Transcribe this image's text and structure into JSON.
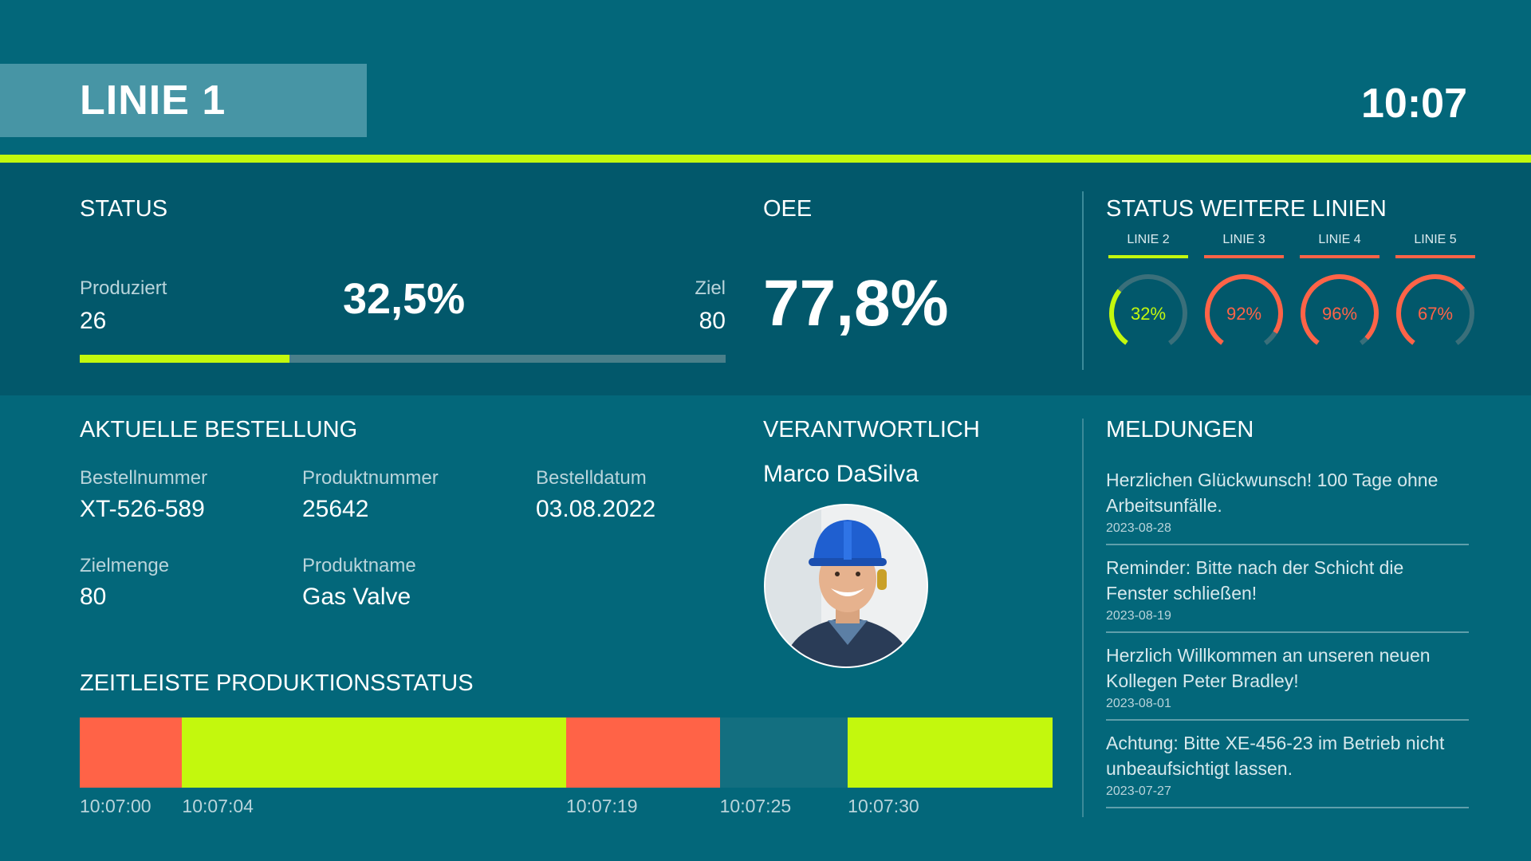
{
  "header": {
    "title": "LINIE 1",
    "clock": "10:07"
  },
  "colors": {
    "accent": "#c3f80d",
    "alert": "#ff6347",
    "idle": "#136f80",
    "bg": "#03677a",
    "band": "#02586b"
  },
  "status": {
    "title": "STATUS",
    "produced_label": "Produziert",
    "produced_value": "26",
    "percent": "32,5%",
    "target_label": "Ziel",
    "target_value": "80",
    "progress_fraction": 0.325
  },
  "oee": {
    "title": "OEE",
    "value": "77,8%"
  },
  "other_lines": {
    "title": "STATUS WEITERE LINIEN",
    "lines": [
      {
        "name": "LINIE 2",
        "value_text": "32%",
        "fraction": 0.32,
        "color": "#c3f80d"
      },
      {
        "name": "LINIE 3",
        "value_text": "92%",
        "fraction": 0.92,
        "color": "#ff6347"
      },
      {
        "name": "LINIE 4",
        "value_text": "96%",
        "fraction": 0.96,
        "color": "#ff6347"
      },
      {
        "name": "LINIE 5",
        "value_text": "67%",
        "fraction": 0.67,
        "color": "#ff6347"
      }
    ]
  },
  "order": {
    "title": "AKTUELLE BESTELLUNG",
    "order_number_label": "Bestellnummer",
    "order_number": "XT-526-589",
    "product_number_label": "Produktnummer",
    "product_number": "25642",
    "order_date_label": "Bestelldatum",
    "order_date": "03.08.2022",
    "target_qty_label": "Zielmenge",
    "target_qty": "80",
    "product_name_label": "Produktname",
    "product_name": "Gas Valve"
  },
  "responsible": {
    "title": "VERANTWORTLICH",
    "name": "Marco DaSilva"
  },
  "timeline": {
    "title": "ZEITLEISTE PRODUKTIONSSTATUS",
    "segments": [
      {
        "start": "10:07:00",
        "state": "alert",
        "color": "#ff6347"
      },
      {
        "start": "10:07:04",
        "state": "running",
        "color": "#c3f80d"
      },
      {
        "start": "10:07:19",
        "state": "alert",
        "color": "#ff6347"
      },
      {
        "start": "10:07:25",
        "state": "idle",
        "color": "#136f80"
      },
      {
        "start": "10:07:30",
        "state": "running",
        "color": "#c3f80d"
      }
    ]
  },
  "messages": {
    "title": "MELDUNGEN",
    "items": [
      {
        "text": "Herzlichen Glückwunsch! 100 Tage ohne Arbeitsunfälle.",
        "date": "2023-08-28"
      },
      {
        "text": "Reminder: Bitte nach der Schicht die Fenster schließen!",
        "date": "2023-08-19"
      },
      {
        "text": "Herzlich Willkommen an unseren neuen Kollegen Peter Bradley!",
        "date": "2023-08-01"
      },
      {
        "text": "Achtung: Bitte XE-456-23 im Betrieb nicht unbeaufsichtigt lassen.",
        "date": "2023-07-27"
      }
    ]
  }
}
